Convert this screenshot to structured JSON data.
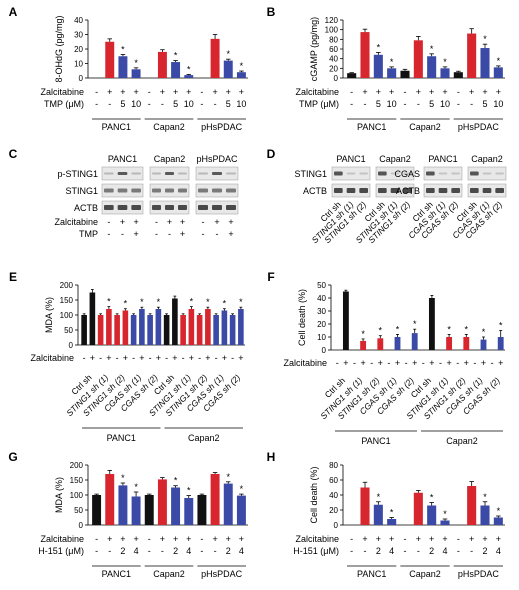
{
  "colors": {
    "black": "#111111",
    "red": "#d7262e",
    "blue": "#3a4aa6",
    "gray": "#555555"
  },
  "panels": {
    "A": {
      "letter": "A",
      "ylabel": "8-OHdG (pg/mg)",
      "ylim": [
        0,
        40
      ],
      "ticks": [
        "0",
        "10",
        "20",
        "30",
        "40"
      ],
      "row1": {
        "label": "Zalcitabine",
        "vals": [
          "-",
          "+",
          "+",
          "+",
          "-",
          "+",
          "+",
          "+",
          "-",
          "+",
          "+",
          "+"
        ]
      },
      "row2": {
        "label": "TMP (μM)",
        "vals": [
          "-",
          "-",
          "5",
          "10",
          "-",
          "-",
          "5",
          "10",
          "-",
          "-",
          "5",
          "10"
        ]
      },
      "groups": [
        "PANC1",
        "Capan2",
        "pHsPDAC"
      ]
    },
    "B": {
      "letter": "B",
      "ylabel": "cGAMP (pg/mg)",
      "ylim": [
        0,
        120
      ],
      "ticks": [
        "0",
        "20",
        "40",
        "60",
        "80",
        "100",
        "120"
      ],
      "row1": {
        "label": "Zalcitabine",
        "vals": [
          "-",
          "+",
          "+",
          "+",
          "-",
          "+",
          "+",
          "+",
          "-",
          "+",
          "+",
          "+"
        ]
      },
      "row2": {
        "label": "TMP (μM)",
        "vals": [
          "-",
          "-",
          "5",
          "10",
          "-",
          "-",
          "5",
          "10",
          "-",
          "-",
          "5",
          "10"
        ]
      },
      "groups": [
        "PANC1",
        "Capan2",
        "pHsPDAC"
      ]
    },
    "C": {
      "letter": "C",
      "cols": [
        "PANC1",
        "Capan2",
        "pHsPDAC"
      ],
      "bands": [
        "p-STING1",
        "STING1",
        "ACTB"
      ],
      "row1": {
        "label": "Zalcitabine",
        "vals": [
          "-",
          "+",
          "+",
          "-",
          "+",
          "+",
          "-",
          "+",
          "+"
        ]
      },
      "row2": {
        "label": "TMP",
        "vals": [
          "-",
          "-",
          "+",
          "-",
          "-",
          "+",
          "-",
          "-",
          "+"
        ]
      }
    },
    "D": {
      "letter": "D",
      "left": {
        "cols": [
          "PANC1",
          "Capan2"
        ],
        "bands": [
          "STING1",
          "ACTB"
        ],
        "lanes": [
          "Ctrl sh",
          "STING1 sh (1)",
          "STING1 sh (2)",
          "Ctrl sh",
          "STING1 sh (1)",
          "STING1 sh (2)"
        ]
      },
      "right": {
        "cols": [
          "PANC1",
          "Capan2"
        ],
        "bands": [
          "CGAS",
          "ACTB"
        ],
        "lanes": [
          "Ctrl sh",
          "CGAS sh (1)",
          "CGAS sh (2)",
          "Ctrl sh",
          "CGAS sh (1)",
          "CGAS sh (2)"
        ]
      }
    },
    "E": {
      "letter": "E",
      "ylabel": "MDA (%)",
      "ylim": [
        0,
        200
      ],
      "ticks": [
        "0",
        "50",
        "100",
        "150",
        "200"
      ],
      "row1": {
        "label": "Zalcitabine",
        "vals": [
          "-",
          "+",
          "-",
          "+",
          "-",
          "+",
          "-",
          "+",
          "-",
          "+",
          "-",
          "+",
          "-",
          "+",
          "-",
          "+",
          "-",
          "+",
          "-",
          "+"
        ]
      },
      "lanes": [
        "Ctrl sh",
        "STING1 sh (1)",
        "STING1 sh (2)",
        "CGAS sh (1)",
        "CGAS sh (2)",
        "Ctrl sh",
        "STING1 sh (1)",
        "STING1 sh (2)",
        "CGAS sh (1)",
        "CGAS sh (2)"
      ],
      "groups": [
        "PANC1",
        "Capan2"
      ]
    },
    "F": {
      "letter": "F",
      "ylabel": "Cell death (%)",
      "ylim": [
        0,
        50
      ],
      "ticks": [
        "0",
        "10",
        "20",
        "30",
        "40",
        "50"
      ],
      "row1": {
        "label": "Zalcitabine",
        "vals": [
          "-",
          "+",
          "-",
          "+",
          "-",
          "+",
          "-",
          "+",
          "-",
          "+",
          "-",
          "+",
          "-",
          "+",
          "-",
          "+",
          "-",
          "+",
          "-",
          "+"
        ]
      },
      "lanes": [
        "Ctrl sh",
        "STING1 sh (1)",
        "STING1 sh (2)",
        "CGAS sh (1)",
        "CGAS sh (2)",
        "Ctrl sh",
        "STING1 sh (1)",
        "STING1 sh (2)",
        "CGAS sh (1)",
        "CGAS sh (2)"
      ],
      "groups": [
        "PANC1",
        "Capan2"
      ]
    },
    "G": {
      "letter": "G",
      "ylabel": "MDA (%)",
      "ylim": [
        0,
        200
      ],
      "ticks": [
        "0",
        "50",
        "100",
        "150",
        "200"
      ],
      "row1": {
        "label": "Zalcitabine",
        "vals": [
          "-",
          "+",
          "+",
          "+",
          "-",
          "+",
          "+",
          "+",
          "-",
          "+",
          "+",
          "+"
        ]
      },
      "row2": {
        "label": "H-151 (μM)",
        "vals": [
          "-",
          "-",
          "2",
          "4",
          "-",
          "-",
          "2",
          "4",
          "-",
          "-",
          "2",
          "4"
        ]
      },
      "groups": [
        "PANC1",
        "Capan2",
        "pHsPDAC"
      ]
    },
    "H": {
      "letter": "H",
      "ylabel": "Cell death (%)",
      "ylim": [
        0,
        80
      ],
      "ticks": [
        "0",
        "20",
        "40",
        "60",
        "80"
      ],
      "row1": {
        "label": "Zalcitabine",
        "vals": [
          "-",
          "+",
          "+",
          "+",
          "-",
          "+",
          "+",
          "+",
          "-",
          "+",
          "+",
          "+"
        ]
      },
      "row2": {
        "label": "H-151 (μM)",
        "vals": [
          "-",
          "-",
          "2",
          "4",
          "-",
          "-",
          "2",
          "4",
          "-",
          "-",
          "2",
          "4"
        ]
      },
      "groups": [
        "PANC1",
        "Capan2",
        "pHsPDAC"
      ]
    }
  },
  "chart_data": [
    {
      "panel": "A",
      "type": "bar",
      "ylabel": "8-OHdG (pg/mg)",
      "ylim": [
        0,
        40
      ],
      "values": [
        0,
        25,
        15,
        6,
        0,
        18,
        11,
        2,
        0,
        27,
        12,
        4
      ],
      "errors": [
        0,
        2,
        1.2,
        1,
        0,
        1.5,
        1,
        0.5,
        0,
        3,
        1,
        0.8
      ],
      "colors": [
        "black",
        "red",
        "blue",
        "blue",
        "black",
        "red",
        "blue",
        "blue",
        "black",
        "red",
        "blue",
        "blue"
      ],
      "stars": [
        0,
        0,
        1,
        1,
        0,
        0,
        1,
        1,
        0,
        0,
        1,
        1
      ]
    },
    {
      "panel": "B",
      "type": "bar",
      "ylabel": "cGAMP (pg/mg)",
      "ylim": [
        0,
        120
      ],
      "values": [
        10,
        95,
        48,
        20,
        15,
        78,
        45,
        20,
        12,
        92,
        62,
        22
      ],
      "errors": [
        1,
        6,
        5,
        3,
        3,
        8,
        5,
        3,
        2,
        10,
        8,
        3
      ],
      "colors": [
        "black",
        "red",
        "blue",
        "blue",
        "black",
        "red",
        "blue",
        "blue",
        "black",
        "red",
        "blue",
        "blue"
      ],
      "stars": [
        0,
        0,
        1,
        1,
        0,
        0,
        1,
        1,
        0,
        0,
        1,
        1
      ]
    },
    {
      "panel": "E",
      "type": "bar",
      "ylabel": "MDA (%)",
      "ylim": [
        0,
        200
      ],
      "values": [
        100,
        175,
        100,
        120,
        100,
        115,
        100,
        120,
        100,
        120,
        100,
        155,
        100,
        120,
        100,
        120,
        100,
        115,
        100,
        120
      ],
      "errors": [
        4,
        10,
        4,
        8,
        4,
        6,
        4,
        6,
        4,
        6,
        4,
        8,
        4,
        8,
        4,
        6,
        4,
        6,
        4,
        6
      ],
      "colors": [
        "black",
        "black",
        "red",
        "red",
        "red",
        "red",
        "blue",
        "blue",
        "blue",
        "blue",
        "black",
        "black",
        "red",
        "red",
        "red",
        "red",
        "blue",
        "blue",
        "blue",
        "blue"
      ],
      "stars": [
        0,
        0,
        0,
        1,
        0,
        1,
        0,
        1,
        0,
        1,
        0,
        0,
        0,
        1,
        0,
        1,
        0,
        1,
        0,
        1
      ]
    },
    {
      "panel": "F",
      "type": "bar",
      "ylabel": "Cell death (%)",
      "ylim": [
        0,
        50
      ],
      "values": [
        0,
        45,
        0,
        7,
        0,
        9,
        0,
        10,
        0,
        13,
        0,
        40,
        0,
        10,
        0,
        10,
        0,
        8,
        0,
        10
      ],
      "errors": [
        0,
        1,
        0,
        1.5,
        0,
        2,
        0,
        2,
        0,
        3,
        0,
        2,
        0,
        2,
        0,
        2,
        0,
        2,
        0,
        5
      ],
      "colors": [
        "black",
        "black",
        "red",
        "red",
        "red",
        "red",
        "blue",
        "blue",
        "blue",
        "blue",
        "black",
        "black",
        "red",
        "red",
        "red",
        "red",
        "blue",
        "blue",
        "blue",
        "blue"
      ],
      "stars": [
        0,
        0,
        0,
        1,
        0,
        1,
        0,
        1,
        0,
        1,
        0,
        0,
        0,
        1,
        0,
        1,
        0,
        1,
        0,
        1
      ]
    },
    {
      "panel": "G",
      "type": "bar",
      "ylabel": "MDA (%)",
      "ylim": [
        0,
        200
      ],
      "values": [
        100,
        170,
        132,
        95,
        100,
        152,
        125,
        90,
        100,
        170,
        138,
        98
      ],
      "errors": [
        3,
        12,
        8,
        15,
        3,
        6,
        6,
        8,
        3,
        5,
        6,
        5
      ],
      "colors": [
        "black",
        "red",
        "blue",
        "blue",
        "black",
        "red",
        "blue",
        "blue",
        "black",
        "red",
        "blue",
        "blue"
      ],
      "stars": [
        0,
        0,
        1,
        1,
        0,
        0,
        1,
        1,
        0,
        0,
        1,
        1
      ]
    },
    {
      "panel": "H",
      "type": "bar",
      "ylabel": "Cell death (%)",
      "ylim": [
        0,
        80
      ],
      "values": [
        0,
        50,
        27,
        8,
        0,
        43,
        26,
        6,
        0,
        52,
        26,
        10
      ],
      "errors": [
        0,
        7,
        4,
        2,
        0,
        3,
        4,
        2,
        0,
        6,
        5,
        2
      ],
      "colors": [
        "black",
        "red",
        "blue",
        "blue",
        "black",
        "red",
        "blue",
        "blue",
        "black",
        "red",
        "blue",
        "blue"
      ],
      "stars": [
        0,
        0,
        1,
        1,
        0,
        0,
        1,
        1,
        0,
        0,
        1,
        1
      ]
    }
  ]
}
